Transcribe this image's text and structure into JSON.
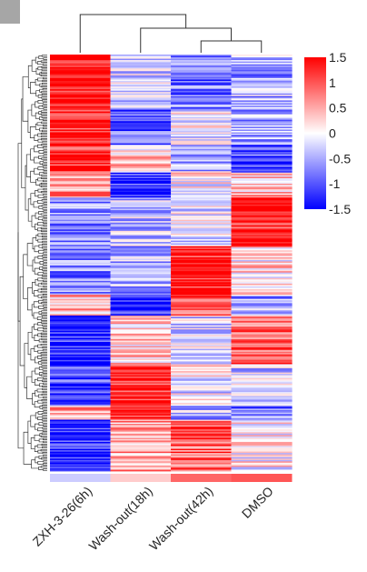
{
  "chart_data": {
    "type": "heatmap",
    "columns": [
      "ZXH-3-26(6h)",
      "Wash-out(18h)",
      "Wash-out(42h)",
      "DMSO"
    ],
    "column_bar_values": [
      -0.3,
      0.3,
      0.9,
      1.0
    ],
    "color_scale": {
      "min": -1.5,
      "max": 1.5,
      "ticks": [
        1.5,
        1,
        0.5,
        0,
        -0.5,
        -1,
        -1.5
      ],
      "tick_labels": [
        "1.5",
        "1",
        "0.5",
        "0",
        "-0.5",
        "-1",
        "-1.5"
      ],
      "colors": {
        "low": "#0000ff",
        "mid": "#ffffff",
        "high": "#ff0000"
      }
    },
    "row_blocks": [
      {
        "rows": 40,
        "values": [
          1.4,
          -0.3,
          -0.8,
          -0.5
        ]
      },
      {
        "rows": 25,
        "values": [
          1.3,
          -1.0,
          -0.1,
          -0.6
        ]
      },
      {
        "rows": 20,
        "values": [
          1.2,
          0.3,
          -0.4,
          -1.1
        ]
      },
      {
        "rows": 18,
        "values": [
          0.7,
          -1.2,
          0.1,
          0.4
        ]
      },
      {
        "rows": 35,
        "values": [
          -0.7,
          -0.3,
          -0.2,
          1.3
        ]
      },
      {
        "rows": 35,
        "values": [
          -0.8,
          -0.5,
          1.3,
          0.2
        ]
      },
      {
        "rows": 15,
        "values": [
          0.5,
          -1.3,
          1.1,
          -0.5
        ]
      },
      {
        "rows": 35,
        "values": [
          -1.3,
          0.3,
          -0.2,
          1.0
        ]
      },
      {
        "rows": 30,
        "values": [
          -1.1,
          1.3,
          -0.1,
          -0.3
        ]
      },
      {
        "rows": 10,
        "values": [
          0.5,
          1.3,
          -0.4,
          -0.8
        ]
      },
      {
        "rows": 37,
        "values": [
          -1.3,
          0.5,
          0.9,
          0.1
        ]
      }
    ],
    "column_dendrogram": "((ZXH-3-26(6h)),((Wash-out(18h)),((Wash-out(42h)),(DMSO))))",
    "row_dendrogram": true,
    "legend_position": "top-right"
  }
}
